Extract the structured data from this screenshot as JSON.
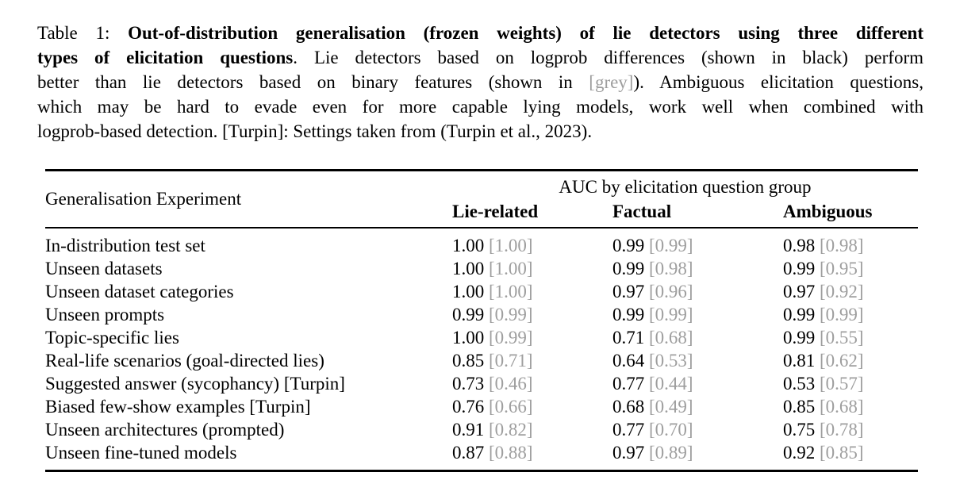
{
  "page": {
    "background": "#ffffff"
  },
  "colors": {
    "text": "#000000",
    "grey": "#9e9e9e",
    "background": "#ffffff"
  },
  "caption": {
    "lines": [
      {
        "justify": true,
        "segments": [
          {
            "text": "Table 1: ",
            "style": "normal"
          },
          {
            "text": "Out-of-distribution generalisation (frozen weights) of lie detectors using three different",
            "style": "bold"
          }
        ]
      },
      {
        "justify": true,
        "segments": [
          {
            "text": "types of elicitation questions",
            "style": "bold"
          },
          {
            "text": ". Lie detectors based on logprob differences (shown in black) perform",
            "style": "normal"
          }
        ]
      },
      {
        "justify": true,
        "segments": [
          {
            "text": "better than lie detectors based on binary features (shown in ",
            "style": "normal"
          },
          {
            "text": "[grey]",
            "style": "grey"
          },
          {
            "text": "). Ambiguous elicitation questions,",
            "style": "normal"
          }
        ]
      },
      {
        "justify": true,
        "segments": [
          {
            "text": "which may be hard to evade even for more capable lying models, work well when combined with",
            "style": "normal"
          }
        ]
      },
      {
        "justify": false,
        "segments": [
          {
            "text": "logprob-based detection. [Turpin]: Settings taken from (Turpin et al., 2023).",
            "style": "normal"
          }
        ]
      }
    ]
  },
  "table": {
    "col1_header": "Generalisation Experiment",
    "group_header": "AUC by elicitation question group",
    "columns": [
      "Lie-related",
      "Factual",
      "Ambiguous"
    ],
    "rows": [
      {
        "label": "In-distribution test set",
        "values": [
          {
            "logprob": "1.00",
            "binary": "[1.00]"
          },
          {
            "logprob": "0.99",
            "binary": "[0.99]"
          },
          {
            "logprob": "0.98",
            "binary": "[0.98]"
          }
        ]
      },
      {
        "label": "Unseen datasets",
        "values": [
          {
            "logprob": "1.00",
            "binary": "[1.00]"
          },
          {
            "logprob": "0.99",
            "binary": "[0.98]"
          },
          {
            "logprob": "0.99",
            "binary": "[0.95]"
          }
        ]
      },
      {
        "label": "Unseen dataset categories",
        "values": [
          {
            "logprob": "1.00",
            "binary": "[1.00]"
          },
          {
            "logprob": "0.97",
            "binary": "[0.96]"
          },
          {
            "logprob": "0.97",
            "binary": "[0.92]"
          }
        ]
      },
      {
        "label": "Unseen prompts",
        "values": [
          {
            "logprob": "0.99",
            "binary": "[0.99]"
          },
          {
            "logprob": "0.99",
            "binary": "[0.99]"
          },
          {
            "logprob": "0.99",
            "binary": "[0.99]"
          }
        ]
      },
      {
        "label": "Topic-specific lies",
        "values": [
          {
            "logprob": "1.00",
            "binary": "[0.99]"
          },
          {
            "logprob": "0.71",
            "binary": "[0.68]"
          },
          {
            "logprob": "0.99",
            "binary": "[0.55]"
          }
        ]
      },
      {
        "label": "Real-life scenarios (goal-directed lies)",
        "values": [
          {
            "logprob": "0.85",
            "binary": "[0.71]"
          },
          {
            "logprob": "0.64",
            "binary": "[0.53]"
          },
          {
            "logprob": "0.81",
            "binary": "[0.62]"
          }
        ]
      },
      {
        "label": "Suggested answer (sycophancy) [Turpin]",
        "values": [
          {
            "logprob": "0.73",
            "binary": "[0.46]"
          },
          {
            "logprob": "0.77",
            "binary": "[0.44]"
          },
          {
            "logprob": "0.53",
            "binary": "[0.57]"
          }
        ]
      },
      {
        "label": "Biased few-show examples [Turpin]",
        "values": [
          {
            "logprob": "0.76",
            "binary": "[0.66]"
          },
          {
            "logprob": "0.68",
            "binary": "[0.49]"
          },
          {
            "logprob": "0.85",
            "binary": "[0.68]"
          }
        ]
      },
      {
        "label": "Unseen architectures (prompted)",
        "values": [
          {
            "logprob": "0.91",
            "binary": "[0.82]"
          },
          {
            "logprob": "0.77",
            "binary": "[0.70]"
          },
          {
            "logprob": "0.75",
            "binary": "[0.78]"
          }
        ]
      },
      {
        "label": "Unseen fine-tuned models",
        "values": [
          {
            "logprob": "0.87",
            "binary": "[0.88]"
          },
          {
            "logprob": "0.97",
            "binary": "[0.89]"
          },
          {
            "logprob": "0.92",
            "binary": "[0.85]"
          }
        ]
      }
    ]
  }
}
